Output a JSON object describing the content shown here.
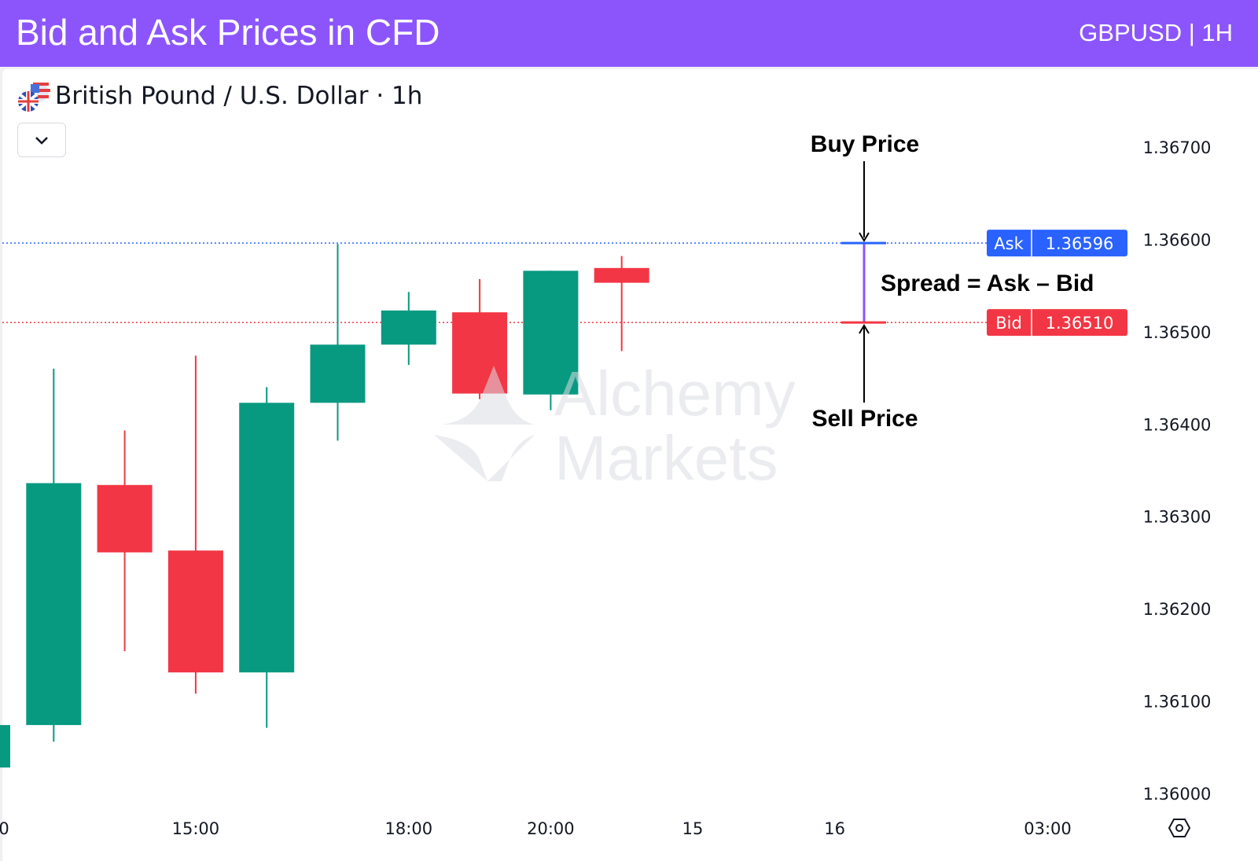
{
  "header": {
    "title": "Bid and Ask Prices in CFD",
    "subtitle": "GBPUSD | 1H"
  },
  "symbol": {
    "label": "British Pound / U.S. Dollar · 1h",
    "icon": "gbp-usd-flags-icon",
    "dropdown_icon": "chevron-down-icon"
  },
  "watermark": {
    "text_line1": "Alchemy",
    "text_line2": "Markets"
  },
  "colors": {
    "header": "#8c55fc",
    "up": "#089981",
    "down": "#f23645",
    "ask": "#2962ff",
    "bid": "#f23645",
    "spread": "#8c55fc"
  },
  "chart_data": {
    "type": "candlestick",
    "title": "",
    "ylim": [
      1.36,
      1.367
    ],
    "y_ticks": [
      "1.36000",
      "1.36100",
      "1.36200",
      "1.36300",
      "1.36400",
      "1.36500",
      "1.36600",
      "1.36700"
    ],
    "x_tick_labels": [
      {
        "label": "0",
        "slot": 0.3
      },
      {
        "label": "15:00",
        "slot": 3
      },
      {
        "label": "18:00",
        "slot": 6
      },
      {
        "label": "20:00",
        "slot": 8
      },
      {
        "label": "15",
        "slot": 10
      },
      {
        "label": "16",
        "slot": 12
      },
      {
        "label": "03:00",
        "slot": 15
      }
    ],
    "candles": [
      {
        "o": 1.36028,
        "h": 1.3608,
        "l": 1.3602,
        "c": 1.36074
      },
      {
        "o": 1.36074,
        "h": 1.3646,
        "l": 1.36056,
        "c": 1.36336
      },
      {
        "o": 1.36334,
        "h": 1.36393,
        "l": 1.36154,
        "c": 1.36261
      },
      {
        "o": 1.36263,
        "h": 1.36474,
        "l": 1.36108,
        "c": 1.36131
      },
      {
        "o": 1.36131,
        "h": 1.3644,
        "l": 1.36071,
        "c": 1.36423
      },
      {
        "o": 1.36423,
        "h": 1.36595,
        "l": 1.36382,
        "c": 1.36486
      },
      {
        "o": 1.36486,
        "h": 1.36543,
        "l": 1.36464,
        "c": 1.36523
      },
      {
        "o": 1.36521,
        "h": 1.36557,
        "l": 1.36427,
        "c": 1.36433
      },
      {
        "o": 1.36432,
        "h": 1.36566,
        "l": 1.36415,
        "c": 1.36566
      },
      {
        "o": 1.36569,
        "h": 1.36582,
        "l": 1.36479,
        "c": 1.36553
      }
    ],
    "ask": {
      "label": "Ask",
      "value": 1.36596,
      "text": "1.36596"
    },
    "bid": {
      "label": "Bid",
      "value": 1.3651,
      "text": "1.36510"
    },
    "annotations": {
      "buy": "Buy Price",
      "sell": "Sell Price",
      "spread": "Spread = Ask – Bid"
    }
  },
  "footer": {
    "settings_icon": "settings-hexagon-icon"
  }
}
